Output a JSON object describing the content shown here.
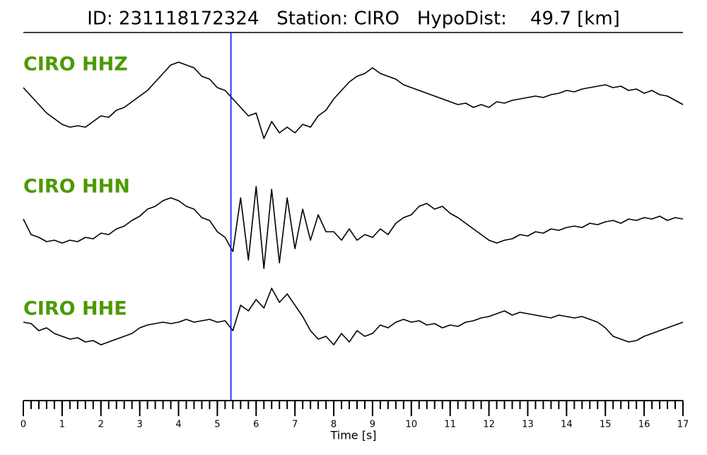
{
  "chart_data": {
    "type": "line",
    "title": "ID: 231118172324   Station: CIRO   HypoDist:    49.7 [km]",
    "xlabel": "Time [s]",
    "xlim": [
      0,
      17
    ],
    "xticks": [
      0,
      1,
      2,
      3,
      4,
      5,
      6,
      7,
      8,
      9,
      10,
      11,
      12,
      13,
      14,
      15,
      16,
      17
    ],
    "xticks_minor": [
      0,
      0.2,
      0.4,
      0.6,
      0.8,
      1,
      1.2,
      1.4,
      1.6,
      1.8,
      2,
      2.2,
      2.4,
      2.6,
      2.8,
      3,
      3.2,
      3.4,
      3.6,
      3.8,
      4,
      4.2,
      4.4,
      4.6,
      4.8,
      5,
      5.2,
      5.4,
      5.6,
      5.8,
      6,
      6.2,
      6.4,
      6.6,
      6.8,
      7,
      7.2,
      7.4,
      7.6,
      7.8,
      8,
      8.2,
      8.4,
      8.6,
      8.8,
      9,
      9.2,
      9.4,
      9.6,
      9.8,
      10,
      10.2,
      10.4,
      10.6,
      10.8,
      11,
      11.2,
      11.4,
      11.6,
      11.8,
      12,
      12.2,
      12.4,
      12.6,
      12.8,
      13,
      13.2,
      13.4,
      13.6,
      13.8,
      14,
      14.2,
      14.4,
      14.6,
      14.8,
      15,
      15.2,
      15.4,
      15.6,
      15.8,
      16,
      16.2,
      16.4,
      16.6,
      16.8,
      17
    ],
    "pick_time": 5.35,
    "pick_color": "#0000ff",
    "label_color": "#4c9a00",
    "x": [
      0,
      0.2,
      0.4,
      0.6,
      0.8,
      1,
      1.2,
      1.4,
      1.6,
      1.8,
      2,
      2.2,
      2.4,
      2.6,
      2.8,
      3,
      3.2,
      3.4,
      3.6,
      3.8,
      4,
      4.2,
      4.4,
      4.6,
      4.8,
      5,
      5.2,
      5.4,
      5.6,
      5.8,
      6,
      6.2,
      6.4,
      6.6,
      6.8,
      7,
      7.2,
      7.4,
      7.6,
      7.8,
      8,
      8.2,
      8.4,
      8.6,
      8.8,
      9,
      9.2,
      9.4,
      9.6,
      9.8,
      10,
      10.2,
      10.4,
      10.6,
      10.8,
      11,
      11.2,
      11.4,
      11.6,
      11.8,
      12,
      12.2,
      12.4,
      12.6,
      12.8,
      13,
      13.2,
      13.4,
      13.6,
      13.8,
      14,
      14.2,
      14.4,
      14.6,
      14.8,
      15,
      15.2,
      15.4,
      15.6,
      15.8,
      16,
      16.2,
      16.4,
      16.6,
      16.8,
      17
    ],
    "series": [
      {
        "name": "CIRO HHZ",
        "color": "#000000",
        "values": [
          0.4,
          0.1,
          -0.2,
          -0.5,
          -0.7,
          -0.9,
          -1.0,
          -0.95,
          -1.0,
          -0.8,
          -0.6,
          -0.65,
          -0.4,
          -0.3,
          -0.1,
          0.1,
          0.3,
          0.6,
          0.9,
          1.2,
          1.3,
          1.2,
          1.1,
          0.8,
          0.7,
          0.4,
          0.3,
          0.0,
          -0.3,
          -0.6,
          -0.5,
          -1.4,
          -0.8,
          -1.2,
          -1.0,
          -1.2,
          -0.9,
          -1.0,
          -0.6,
          -0.4,
          0.0,
          0.3,
          0.6,
          0.8,
          0.9,
          1.1,
          0.9,
          0.8,
          0.7,
          0.5,
          0.4,
          0.3,
          0.2,
          0.1,
          0.0,
          -0.1,
          -0.2,
          -0.15,
          -0.3,
          -0.2,
          -0.3,
          -0.1,
          -0.15,
          -0.05,
          0.0,
          0.05,
          0.1,
          0.05,
          0.15,
          0.2,
          0.3,
          0.25,
          0.35,
          0.4,
          0.45,
          0.5,
          0.4,
          0.45,
          0.3,
          0.35,
          0.2,
          0.3,
          0.15,
          0.1,
          -0.05,
          -0.2
        ]
      },
      {
        "name": "CIRO HHN",
        "color": "#000000",
        "values": [
          0.25,
          -0.3,
          -0.4,
          -0.55,
          -0.5,
          -0.6,
          -0.5,
          -0.55,
          -0.4,
          -0.45,
          -0.25,
          -0.3,
          -0.1,
          0.0,
          0.2,
          0.35,
          0.6,
          0.7,
          0.9,
          1.0,
          0.9,
          0.7,
          0.6,
          0.3,
          0.2,
          -0.2,
          -0.4,
          -0.9,
          1.0,
          -1.2,
          1.4,
          -1.5,
          1.3,
          -1.3,
          1.0,
          -0.8,
          0.6,
          -0.5,
          0.4,
          -0.2,
          -0.2,
          -0.5,
          -0.1,
          -0.5,
          -0.3,
          -0.4,
          -0.1,
          -0.3,
          0.1,
          0.3,
          0.4,
          0.7,
          0.8,
          0.6,
          0.7,
          0.45,
          0.3,
          0.1,
          -0.1,
          -0.3,
          -0.5,
          -0.6,
          -0.5,
          -0.45,
          -0.3,
          -0.35,
          -0.2,
          -0.25,
          -0.1,
          -0.15,
          -0.05,
          0.0,
          -0.05,
          0.1,
          0.05,
          0.15,
          0.2,
          0.1,
          0.25,
          0.2,
          0.3,
          0.25,
          0.35,
          0.2,
          0.3,
          0.25
        ]
      },
      {
        "name": "CIRO HHE",
        "color": "#000000",
        "values": [
          0.1,
          0.05,
          -0.2,
          -0.1,
          -0.3,
          -0.4,
          -0.5,
          -0.45,
          -0.6,
          -0.55,
          -0.7,
          -0.6,
          -0.5,
          -0.4,
          -0.3,
          -0.1,
          0.0,
          0.05,
          0.1,
          0.05,
          0.1,
          0.2,
          0.1,
          0.15,
          0.2,
          0.1,
          0.15,
          -0.2,
          0.7,
          0.5,
          0.9,
          0.6,
          1.3,
          0.8,
          1.1,
          0.7,
          0.3,
          -0.2,
          -0.5,
          -0.4,
          -0.7,
          -0.3,
          -0.6,
          -0.2,
          -0.4,
          -0.3,
          0.0,
          -0.1,
          0.1,
          0.2,
          0.1,
          0.15,
          0.0,
          0.05,
          -0.1,
          0.0,
          -0.05,
          0.1,
          0.15,
          0.25,
          0.3,
          0.4,
          0.5,
          0.35,
          0.45,
          0.4,
          0.35,
          0.3,
          0.25,
          0.35,
          0.3,
          0.25,
          0.3,
          0.2,
          0.1,
          -0.1,
          -0.4,
          -0.5,
          -0.6,
          -0.55,
          -0.4,
          -0.3,
          -0.2,
          -0.1,
          0.0,
          0.1
        ]
      }
    ]
  }
}
